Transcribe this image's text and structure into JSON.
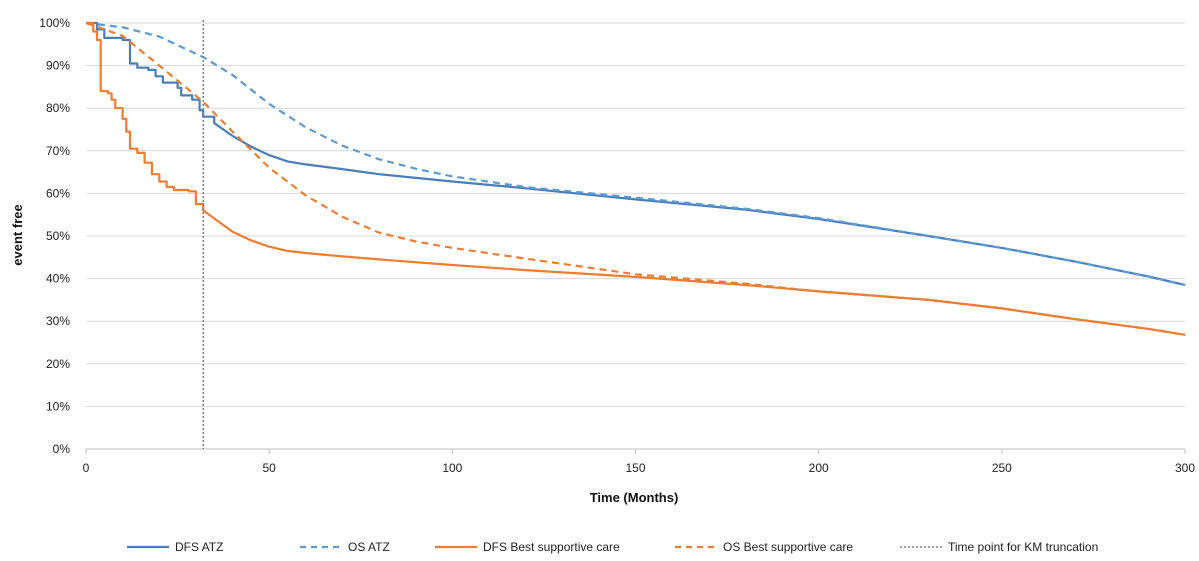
{
  "chart_data": {
    "type": "line",
    "title": "",
    "xlabel": "Time (Months)",
    "ylabel": "event free",
    "xlim": [
      0,
      300
    ],
    "ylim": [
      0,
      1
    ],
    "x_ticks": [
      0,
      50,
      100,
      150,
      200,
      250,
      300
    ],
    "y_ticks": [
      0,
      0.1,
      0.2,
      0.3,
      0.4,
      0.5,
      0.6,
      0.7,
      0.8,
      0.9,
      1.0
    ],
    "x_tick_labels": [
      "0",
      "50",
      "100",
      "150",
      "200",
      "250",
      "300"
    ],
    "y_tick_labels": [
      "0%",
      "10%",
      "20%",
      "30%",
      "40%",
      "50%",
      "60%",
      "70%",
      "80%",
      "90%",
      "100%"
    ],
    "grid": "horizontal",
    "legend_position": "bottom",
    "series": [
      {
        "name": "DFS ATZ",
        "color": "#4a7ebb",
        "style": "solid",
        "step": true,
        "points": [
          [
            0,
            1.0
          ],
          [
            3,
            0.985
          ],
          [
            5,
            0.965
          ],
          [
            10,
            0.96
          ],
          [
            12,
            0.905
          ],
          [
            14,
            0.895
          ],
          [
            17,
            0.89
          ],
          [
            19,
            0.875
          ],
          [
            21,
            0.86
          ],
          [
            25,
            0.848
          ],
          [
            26,
            0.83
          ],
          [
            29,
            0.82
          ],
          [
            31,
            0.795
          ],
          [
            32,
            0.78
          ],
          [
            35,
            0.765
          ],
          [
            40,
            0.735
          ],
          [
            45,
            0.71
          ],
          [
            50,
            0.69
          ],
          [
            55,
            0.675
          ],
          [
            60,
            0.668
          ],
          [
            70,
            0.657
          ],
          [
            80,
            0.645
          ],
          [
            100,
            0.628
          ],
          [
            120,
            0.612
          ],
          [
            150,
            0.586
          ],
          [
            180,
            0.562
          ],
          [
            200,
            0.54
          ],
          [
            230,
            0.5
          ],
          [
            250,
            0.472
          ],
          [
            270,
            0.44
          ],
          [
            290,
            0.405
          ],
          [
            300,
            0.385
          ]
        ]
      },
      {
        "name": "OS ATZ",
        "color": "#5b9bd5",
        "style": "dashed",
        "points": [
          [
            0,
            1.0
          ],
          [
            10,
            0.99
          ],
          [
            20,
            0.968
          ],
          [
            32,
            0.92
          ],
          [
            40,
            0.878
          ],
          [
            50,
            0.81
          ],
          [
            60,
            0.755
          ],
          [
            70,
            0.712
          ],
          [
            80,
            0.68
          ],
          [
            90,
            0.658
          ],
          [
            100,
            0.64
          ],
          [
            120,
            0.615
          ],
          [
            150,
            0.59
          ],
          [
            180,
            0.564
          ],
          [
            200,
            0.542
          ],
          [
            230,
            0.5
          ],
          [
            250,
            0.472
          ],
          [
            270,
            0.44
          ],
          [
            290,
            0.405
          ],
          [
            300,
            0.385
          ]
        ]
      },
      {
        "name": "DFS Best supportive care",
        "color": "#ed7d31",
        "style": "solid",
        "step": true,
        "points": [
          [
            0,
            1.0
          ],
          [
            2,
            0.98
          ],
          [
            3,
            0.96
          ],
          [
            4,
            0.84
          ],
          [
            6,
            0.835
          ],
          [
            7,
            0.82
          ],
          [
            8,
            0.8
          ],
          [
            10,
            0.775
          ],
          [
            11,
            0.745
          ],
          [
            12,
            0.705
          ],
          [
            14,
            0.695
          ],
          [
            16,
            0.672
          ],
          [
            18,
            0.645
          ],
          [
            20,
            0.628
          ],
          [
            22,
            0.615
          ],
          [
            24,
            0.608
          ],
          [
            28,
            0.605
          ],
          [
            30,
            0.575
          ],
          [
            32,
            0.56
          ],
          [
            36,
            0.535
          ],
          [
            40,
            0.51
          ],
          [
            45,
            0.49
          ],
          [
            50,
            0.475
          ],
          [
            55,
            0.465
          ],
          [
            60,
            0.46
          ],
          [
            70,
            0.452
          ],
          [
            80,
            0.445
          ],
          [
            100,
            0.432
          ],
          [
            120,
            0.42
          ],
          [
            150,
            0.404
          ],
          [
            180,
            0.385
          ],
          [
            200,
            0.37
          ],
          [
            230,
            0.35
          ],
          [
            250,
            0.33
          ],
          [
            270,
            0.305
          ],
          [
            290,
            0.282
          ],
          [
            300,
            0.268
          ]
        ]
      },
      {
        "name": "OS Best supportive care",
        "color": "#ed7d31",
        "style": "dashed",
        "points": [
          [
            0,
            1.0
          ],
          [
            10,
            0.97
          ],
          [
            20,
            0.9
          ],
          [
            32,
            0.815
          ],
          [
            40,
            0.745
          ],
          [
            50,
            0.66
          ],
          [
            60,
            0.595
          ],
          [
            70,
            0.545
          ],
          [
            80,
            0.508
          ],
          [
            90,
            0.487
          ],
          [
            100,
            0.472
          ],
          [
            120,
            0.447
          ],
          [
            150,
            0.41
          ],
          [
            180,
            0.388
          ],
          [
            200,
            0.37
          ],
          [
            230,
            0.35
          ],
          [
            250,
            0.33
          ],
          [
            270,
            0.305
          ],
          [
            290,
            0.282
          ],
          [
            300,
            0.268
          ]
        ]
      },
      {
        "name": "Time point for KM truncation",
        "color": "#808080",
        "style": "dotted",
        "vertical_x": 32
      }
    ]
  }
}
